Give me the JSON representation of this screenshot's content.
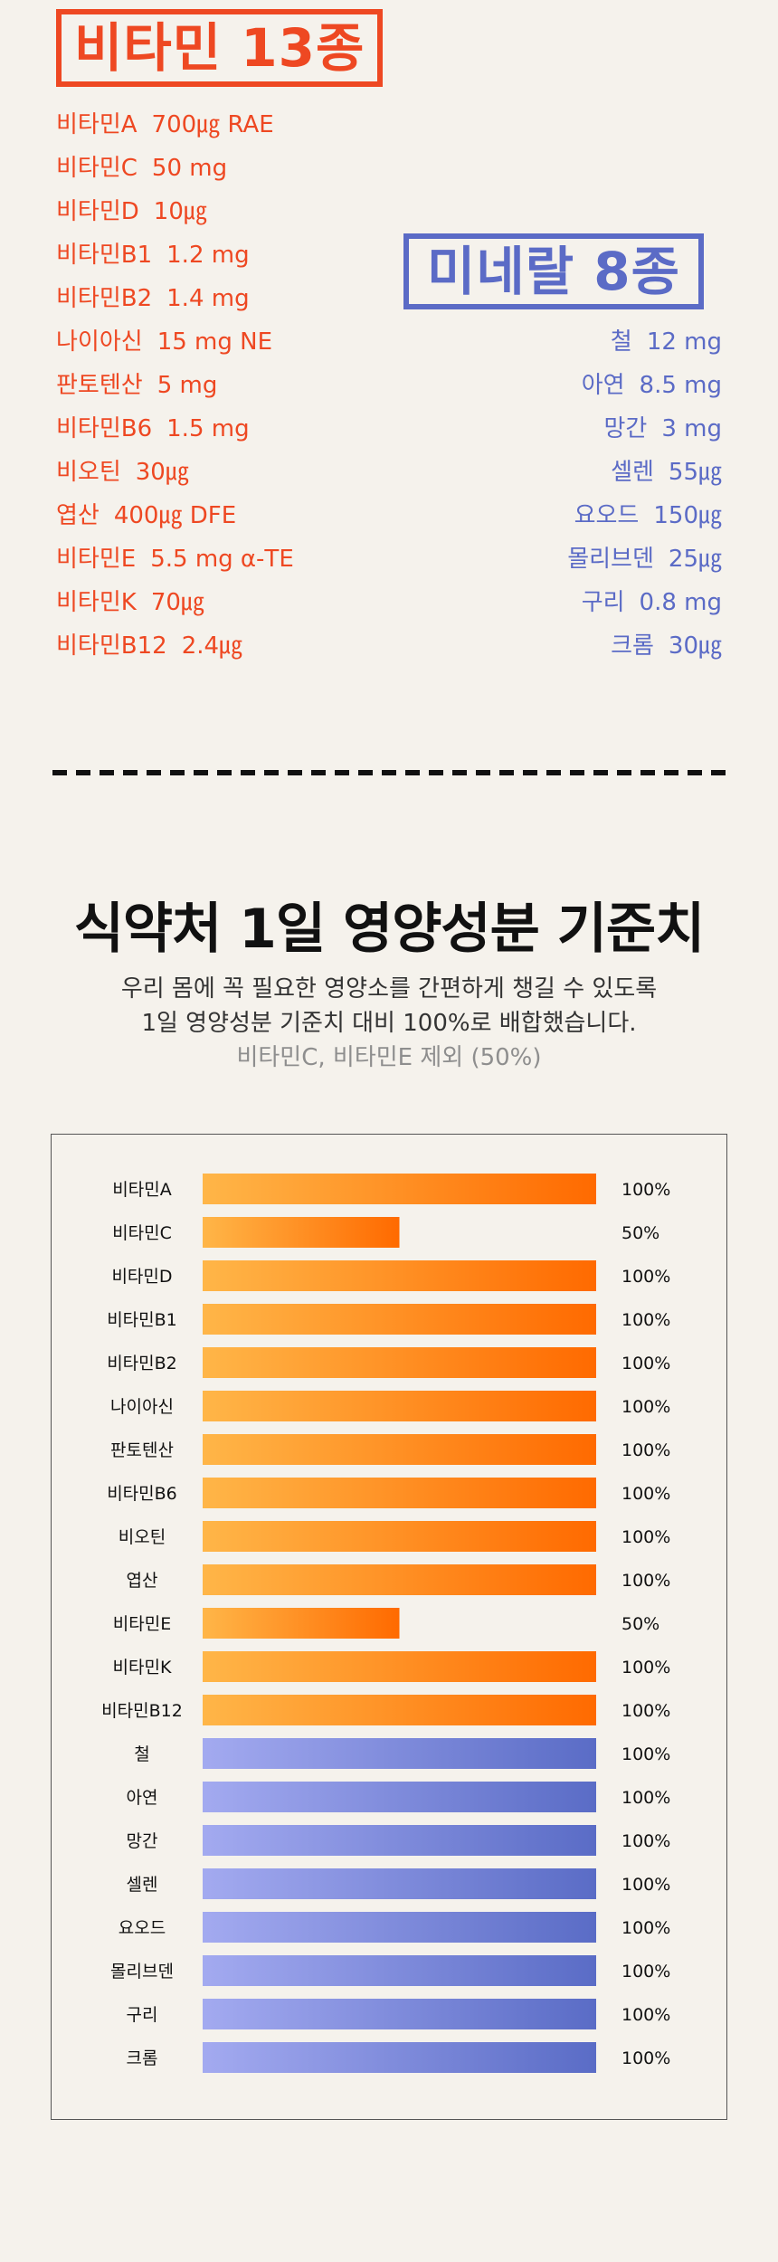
{
  "vitamins": {
    "title": "비타민 13종",
    "items": [
      {
        "name": "비타민A",
        "amount": "700㎍ RAE"
      },
      {
        "name": "비타민C",
        "amount": "50 mg"
      },
      {
        "name": "비타민D",
        "amount": "10㎍"
      },
      {
        "name": "비타민B1",
        "amount": "1.2 mg"
      },
      {
        "name": "비타민B2",
        "amount": "1.4 mg"
      },
      {
        "name": "나이아신",
        "amount": "15 mg NE"
      },
      {
        "name": "판토텐산",
        "amount": "5 mg"
      },
      {
        "name": "비타민B6",
        "amount": "1.5 mg"
      },
      {
        "name": "비오틴",
        "amount": "30㎍"
      },
      {
        "name": "엽산",
        "amount": "400㎍ DFE"
      },
      {
        "name": "비타민E",
        "amount": "5.5 mg α-TE"
      },
      {
        "name": "비타민K",
        "amount": "70㎍"
      },
      {
        "name": "비타민B12",
        "amount": "2.4㎍"
      }
    ]
  },
  "minerals": {
    "title": "미네랄 8종",
    "items": [
      {
        "name": "철",
        "amount": "12 mg"
      },
      {
        "name": "아연",
        "amount": "8.5 mg"
      },
      {
        "name": "망간",
        "amount": "3 mg"
      },
      {
        "name": "셀렌",
        "amount": "55㎍"
      },
      {
        "name": "요오드",
        "amount": "150㎍"
      },
      {
        "name": "몰리브덴",
        "amount": "25㎍"
      },
      {
        "name": "구리",
        "amount": "0.8 mg"
      },
      {
        "name": "크롬",
        "amount": "30㎍"
      }
    ]
  },
  "section": {
    "title": "식약처 1일 영양성분 기준치",
    "desc_line1": "우리 몸에 꼭 필요한 영양소를 간편하게 챙길 수 있도록",
    "desc_line2": "1일 영양성분 기준치 대비 100%로 배합했습니다.",
    "note": "비타민C, 비타민E 제외 (50%)"
  },
  "colors": {
    "vitamin_text": "#ee4822",
    "mineral_text": "#5b6bc6",
    "vitamin_bar_start": "#ffb648",
    "vitamin_bar_end": "#ff6a00",
    "mineral_bar_start": "#a3aaf0",
    "mineral_bar_end": "#5a6cc6"
  },
  "chart_data": {
    "type": "bar",
    "orientation": "horizontal",
    "categories": [
      "비타민A",
      "비타민C",
      "비타민D",
      "비타민B1",
      "비타민B2",
      "나이아신",
      "판토텐산",
      "비타민B6",
      "비오틴",
      "엽산",
      "비타민E",
      "비타민K",
      "비타민B12",
      "철",
      "아연",
      "망간",
      "셀렌",
      "요오드",
      "몰리브덴",
      "구리",
      "크롬"
    ],
    "values": [
      100,
      50,
      100,
      100,
      100,
      100,
      100,
      100,
      100,
      100,
      50,
      100,
      100,
      100,
      100,
      100,
      100,
      100,
      100,
      100,
      100
    ],
    "value_labels": [
      "100%",
      "50%",
      "100%",
      "100%",
      "100%",
      "100%",
      "100%",
      "100%",
      "100%",
      "100%",
      "50%",
      "100%",
      "100%",
      "100%",
      "100%",
      "100%",
      "100%",
      "100%",
      "100%",
      "100%",
      "100%"
    ],
    "group": [
      "vitamin",
      "vitamin",
      "vitamin",
      "vitamin",
      "vitamin",
      "vitamin",
      "vitamin",
      "vitamin",
      "vitamin",
      "vitamin",
      "vitamin",
      "vitamin",
      "vitamin",
      "mineral",
      "mineral",
      "mineral",
      "mineral",
      "mineral",
      "mineral",
      "mineral",
      "mineral"
    ],
    "xlim": [
      0,
      100
    ],
    "grid": false,
    "legend": "none"
  }
}
